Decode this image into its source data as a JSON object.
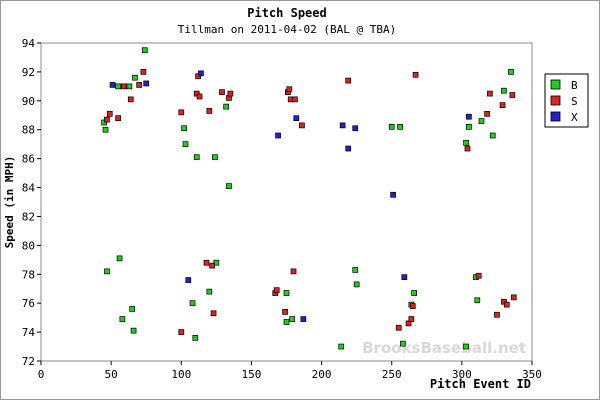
{
  "chart_data": {
    "type": "scatter",
    "title": "Pitch Speed",
    "subtitle": "Tillman on 2011-04-02 (BAL @ TBA)",
    "xlabel": "Pitch Event ID",
    "ylabel": "Speed (in MPH)",
    "xlim": [
      0,
      350
    ],
    "ylim": [
      72,
      94
    ],
    "x_ticks": [
      0,
      50,
      100,
      150,
      200,
      250,
      300,
      350
    ],
    "y_ticks": [
      72,
      74,
      76,
      78,
      80,
      82,
      84,
      86,
      88,
      90,
      92,
      94
    ],
    "grid": false,
    "legend_position": "right",
    "watermark": "BrooksBaseball.net",
    "series": [
      {
        "name": "B",
        "color": "#22cc22",
        "points": [
          {
            "x": 45,
            "y": 88.5
          },
          {
            "x": 46,
            "y": 88.0
          },
          {
            "x": 47,
            "y": 78.2
          },
          {
            "x": 55,
            "y": 91.0
          },
          {
            "x": 56,
            "y": 79.1
          },
          {
            "x": 58,
            "y": 74.9
          },
          {
            "x": 63,
            "y": 91.0
          },
          {
            "x": 65,
            "y": 75.6
          },
          {
            "x": 66,
            "y": 74.1
          },
          {
            "x": 67,
            "y": 91.6
          },
          {
            "x": 74,
            "y": 93.5
          },
          {
            "x": 102,
            "y": 88.1
          },
          {
            "x": 103,
            "y": 87.0
          },
          {
            "x": 108,
            "y": 76.0
          },
          {
            "x": 110,
            "y": 73.6
          },
          {
            "x": 111,
            "y": 86.1
          },
          {
            "x": 120,
            "y": 76.8
          },
          {
            "x": 124,
            "y": 86.1
          },
          {
            "x": 125,
            "y": 78.8
          },
          {
            "x": 132,
            "y": 89.6
          },
          {
            "x": 134,
            "y": 84.1
          },
          {
            "x": 175,
            "y": 76.7
          },
          {
            "x": 175,
            "y": 74.7
          },
          {
            "x": 179,
            "y": 74.9
          },
          {
            "x": 214,
            "y": 73.0
          },
          {
            "x": 224,
            "y": 78.3
          },
          {
            "x": 225,
            "y": 77.3
          },
          {
            "x": 250,
            "y": 88.2
          },
          {
            "x": 256,
            "y": 88.2
          },
          {
            "x": 258,
            "y": 73.2
          },
          {
            "x": 264,
            "y": 75.9
          },
          {
            "x": 266,
            "y": 76.7
          },
          {
            "x": 303,
            "y": 87.1
          },
          {
            "x": 305,
            "y": 88.2
          },
          {
            "x": 303,
            "y": 73.0
          },
          {
            "x": 310,
            "y": 77.8
          },
          {
            "x": 311,
            "y": 76.2
          },
          {
            "x": 314,
            "y": 88.6
          },
          {
            "x": 322,
            "y": 87.6
          },
          {
            "x": 330,
            "y": 90.7
          },
          {
            "x": 335,
            "y": 92.0
          }
        ]
      },
      {
        "name": "S",
        "color": "#dd2222",
        "points": [
          {
            "x": 47,
            "y": 88.7
          },
          {
            "x": 49,
            "y": 89.1
          },
          {
            "x": 55,
            "y": 88.8
          },
          {
            "x": 59,
            "y": 91.0
          },
          {
            "x": 64,
            "y": 90.1
          },
          {
            "x": 70,
            "y": 91.1
          },
          {
            "x": 73,
            "y": 92.0
          },
          {
            "x": 100,
            "y": 89.2
          },
          {
            "x": 100,
            "y": 74.0
          },
          {
            "x": 111,
            "y": 90.5
          },
          {
            "x": 112,
            "y": 91.7
          },
          {
            "x": 113,
            "y": 90.3
          },
          {
            "x": 118,
            "y": 78.8
          },
          {
            "x": 120,
            "y": 89.3
          },
          {
            "x": 122,
            "y": 78.6
          },
          {
            "x": 123,
            "y": 75.3
          },
          {
            "x": 129,
            "y": 90.6
          },
          {
            "x": 134,
            "y": 90.2
          },
          {
            "x": 135,
            "y": 90.5
          },
          {
            "x": 167,
            "y": 76.7
          },
          {
            "x": 168,
            "y": 76.9
          },
          {
            "x": 174,
            "y": 75.4
          },
          {
            "x": 176,
            "y": 90.6
          },
          {
            "x": 177,
            "y": 90.8
          },
          {
            "x": 178,
            "y": 90.1
          },
          {
            "x": 181,
            "y": 90.1
          },
          {
            "x": 180,
            "y": 78.2
          },
          {
            "x": 186,
            "y": 88.3
          },
          {
            "x": 219,
            "y": 91.4
          },
          {
            "x": 255,
            "y": 74.3
          },
          {
            "x": 262,
            "y": 74.6
          },
          {
            "x": 264,
            "y": 74.9
          },
          {
            "x": 265,
            "y": 75.8
          },
          {
            "x": 267,
            "y": 91.8
          },
          {
            "x": 304,
            "y": 86.7
          },
          {
            "x": 312,
            "y": 77.9
          },
          {
            "x": 318,
            "y": 89.1
          },
          {
            "x": 320,
            "y": 90.5
          },
          {
            "x": 325,
            "y": 75.2
          },
          {
            "x": 329,
            "y": 89.7
          },
          {
            "x": 330,
            "y": 76.1
          },
          {
            "x": 332,
            "y": 75.9
          },
          {
            "x": 336,
            "y": 90.4
          },
          {
            "x": 337,
            "y": 76.4
          }
        ]
      },
      {
        "name": "X",
        "color": "#2222cc",
        "points": [
          {
            "x": 51,
            "y": 91.1
          },
          {
            "x": 75,
            "y": 91.2
          },
          {
            "x": 105,
            "y": 77.6
          },
          {
            "x": 114,
            "y": 91.9
          },
          {
            "x": 169,
            "y": 87.6
          },
          {
            "x": 182,
            "y": 88.8
          },
          {
            "x": 187,
            "y": 74.9
          },
          {
            "x": 215,
            "y": 88.3
          },
          {
            "x": 219,
            "y": 86.7
          },
          {
            "x": 224,
            "y": 88.1
          },
          {
            "x": 251,
            "y": 83.5
          },
          {
            "x": 259,
            "y": 77.8
          },
          {
            "x": 305,
            "y": 88.9
          }
        ]
      }
    ]
  }
}
